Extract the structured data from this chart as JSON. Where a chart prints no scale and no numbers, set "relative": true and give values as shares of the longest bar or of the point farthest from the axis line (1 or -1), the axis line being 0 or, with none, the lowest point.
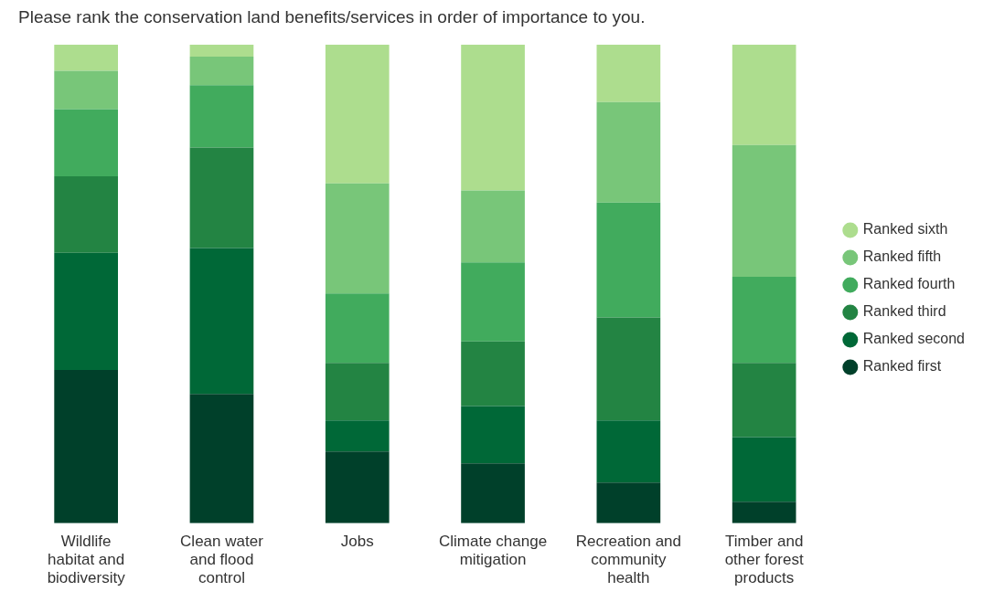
{
  "chart_data": {
    "type": "bar",
    "title": "Please rank the conservation land benefits/services in order of importance to you.",
    "relative": true,
    "stacked": true,
    "legend": "right",
    "marker": "circle",
    "grid": false,
    "categories": [
      "Wildlife habitat and biodiversity",
      "Clean water and flood control",
      "Jobs",
      "Climate change mitigation",
      "Recreation and community health",
      "Timber and other forest products"
    ],
    "series": [
      {
        "name": "Ranked first",
        "color": "#00402a",
        "values": [
          0.32,
          0.27,
          0.15,
          0.125,
          0.085,
          0.045
        ]
      },
      {
        "name": "Ranked second",
        "color": "#006837",
        "values": [
          0.245,
          0.305,
          0.065,
          0.12,
          0.13,
          0.135
        ]
      },
      {
        "name": "Ranked third",
        "color": "#238443",
        "values": [
          0.16,
          0.21,
          0.12,
          0.135,
          0.215,
          0.155
        ]
      },
      {
        "name": "Ranked fourth",
        "color": "#41ab5d",
        "values": [
          0.14,
          0.13,
          0.145,
          0.165,
          0.24,
          0.18
        ]
      },
      {
        "name": "Ranked fifth",
        "color": "#78c679",
        "values": [
          0.08,
          0.06,
          0.23,
          0.15,
          0.21,
          0.275
        ]
      },
      {
        "name": "Ranked sixth",
        "color": "#addd8e",
        "values": [
          0.055,
          0.025,
          0.29,
          0.305,
          0.12,
          0.21
        ]
      }
    ]
  }
}
